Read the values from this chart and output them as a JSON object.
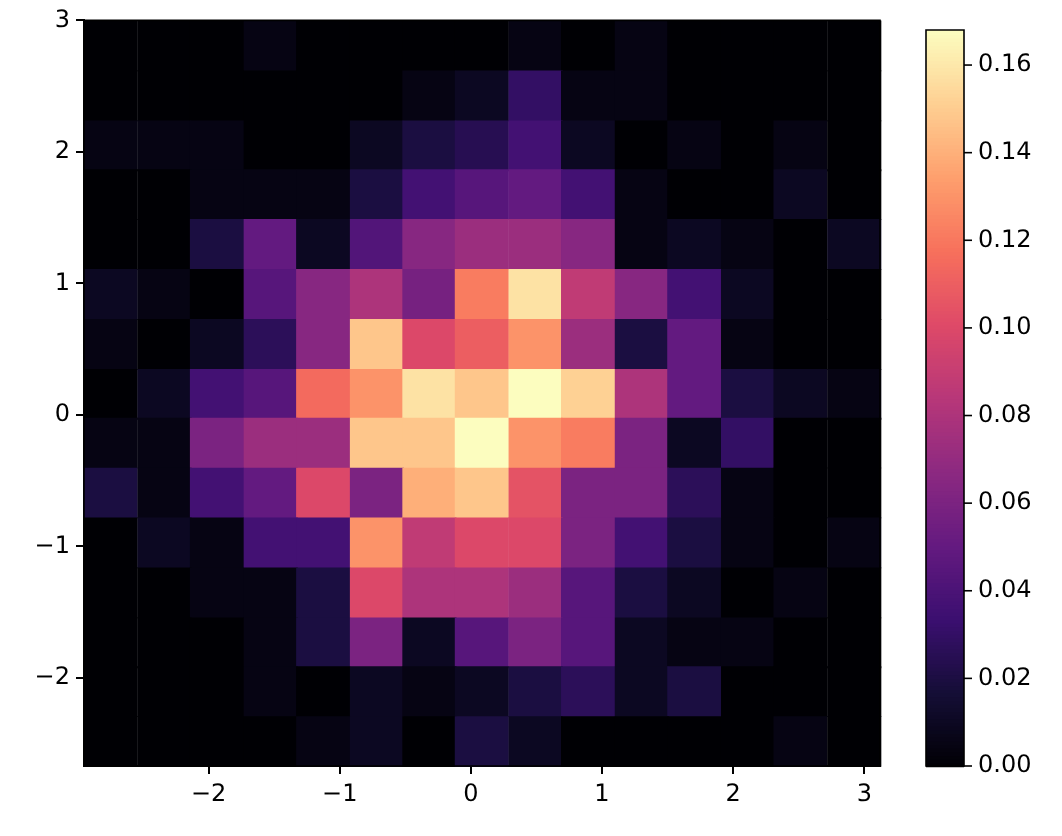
{
  "chart_data": {
    "type": "heatmap",
    "x": [
      -2.75,
      -2.34,
      -1.94,
      -1.53,
      -1.13,
      -0.72,
      -0.32,
      0.08,
      0.49,
      0.89,
      1.3,
      1.7,
      2.11,
      2.51,
      2.92
    ],
    "y": [
      2.81,
      2.43,
      2.05,
      1.68,
      1.3,
      0.92,
      0.54,
      0.16,
      -0.21,
      -0.59,
      -0.97,
      -1.35,
      -1.73,
      -2.1,
      -2.48
    ],
    "xlim": [
      -2.95,
      3.12
    ],
    "ylim": [
      -2.67,
      3.0
    ],
    "xticks": [
      {
        "value": -2,
        "label": "−2"
      },
      {
        "value": -1,
        "label": "−1"
      },
      0,
      1,
      2,
      3
    ],
    "yticks": [
      {
        "value": -2,
        "label": "−2"
      },
      {
        "value": -1,
        "label": "−1"
      },
      0,
      1,
      2,
      3
    ],
    "clim": [
      0,
      0.168
    ],
    "cticks": [
      {
        "value": 0,
        "label": "0.00"
      },
      {
        "value": 0.02,
        "label": "0.02"
      },
      {
        "value": 0.04,
        "label": "0.04"
      },
      {
        "value": 0.06,
        "label": "0.06"
      },
      {
        "value": 0.08,
        "label": "0.08"
      },
      {
        "value": 0.1,
        "label": "0.10"
      },
      {
        "value": 0.12,
        "label": "0.12"
      },
      {
        "value": 0.14,
        "label": "0.14"
      },
      {
        "value": 0.16,
        "label": "0.16"
      }
    ],
    "grid": false,
    "cells": [
      [
        0,
        0,
        0,
        0.005,
        0,
        0,
        0,
        0,
        0.005,
        0,
        0.005,
        0,
        0,
        0,
        0
      ],
      [
        0,
        0,
        0,
        0,
        0,
        0,
        0.005,
        0.01,
        0.03,
        0.005,
        0.005,
        0,
        0,
        0,
        0
      ],
      [
        0.005,
        0.005,
        0.005,
        0,
        0,
        0.01,
        0.02,
        0.025,
        0.037,
        0.01,
        0,
        0.005,
        0,
        0.005,
        0
      ],
      [
        0,
        0,
        0.005,
        0.005,
        0.005,
        0.02,
        0.037,
        0.045,
        0.05,
        0.037,
        0.005,
        0,
        0,
        0.01,
        0
      ],
      [
        0,
        0,
        0.02,
        0.05,
        0.01,
        0.043,
        0.065,
        0.073,
        0.073,
        0.065,
        0.005,
        0.01,
        0.005,
        0,
        0.01
      ],
      [
        0.01,
        0.005,
        0,
        0.045,
        0.065,
        0.08,
        0.058,
        0.122,
        0.158,
        0.088,
        0.065,
        0.037,
        0.01,
        0,
        0
      ],
      [
        0.005,
        0,
        0.01,
        0.027,
        0.065,
        0.148,
        0.1,
        0.11,
        0.13,
        0.073,
        0.02,
        0.05,
        0.005,
        0,
        0
      ],
      [
        0,
        0.01,
        0.037,
        0.045,
        0.115,
        0.13,
        0.158,
        0.148,
        0.168,
        0.152,
        0.08,
        0.05,
        0.02,
        0.01,
        0.005
      ],
      [
        0.005,
        0.005,
        0.06,
        0.073,
        0.073,
        0.148,
        0.148,
        0.168,
        0.13,
        0.122,
        0.06,
        0.01,
        0.03,
        0,
        0
      ],
      [
        0.02,
        0.005,
        0.037,
        0.05,
        0.1,
        0.06,
        0.14,
        0.148,
        0.105,
        0.06,
        0.06,
        0.027,
        0.005,
        0,
        0
      ],
      [
        0,
        0.01,
        0.005,
        0.037,
        0.037,
        0.13,
        0.088,
        0.1,
        0.1,
        0.06,
        0.037,
        0.02,
        0.005,
        0,
        0.005
      ],
      [
        0,
        0,
        0.005,
        0.005,
        0.02,
        0.1,
        0.08,
        0.08,
        0.073,
        0.045,
        0.02,
        0.01,
        0,
        0.005,
        0
      ],
      [
        0,
        0,
        0,
        0.005,
        0.02,
        0.06,
        0.01,
        0.045,
        0.06,
        0.045,
        0.01,
        0.005,
        0.005,
        0,
        0
      ],
      [
        0,
        0,
        0,
        0.005,
        0,
        0.01,
        0.005,
        0.01,
        0.02,
        0.027,
        0.01,
        0.02,
        0,
        0,
        0
      ],
      [
        0,
        0,
        0,
        0,
        0.005,
        0.01,
        0,
        0.02,
        0.01,
        0,
        0,
        0,
        0,
        0.005,
        0
      ]
    ]
  }
}
